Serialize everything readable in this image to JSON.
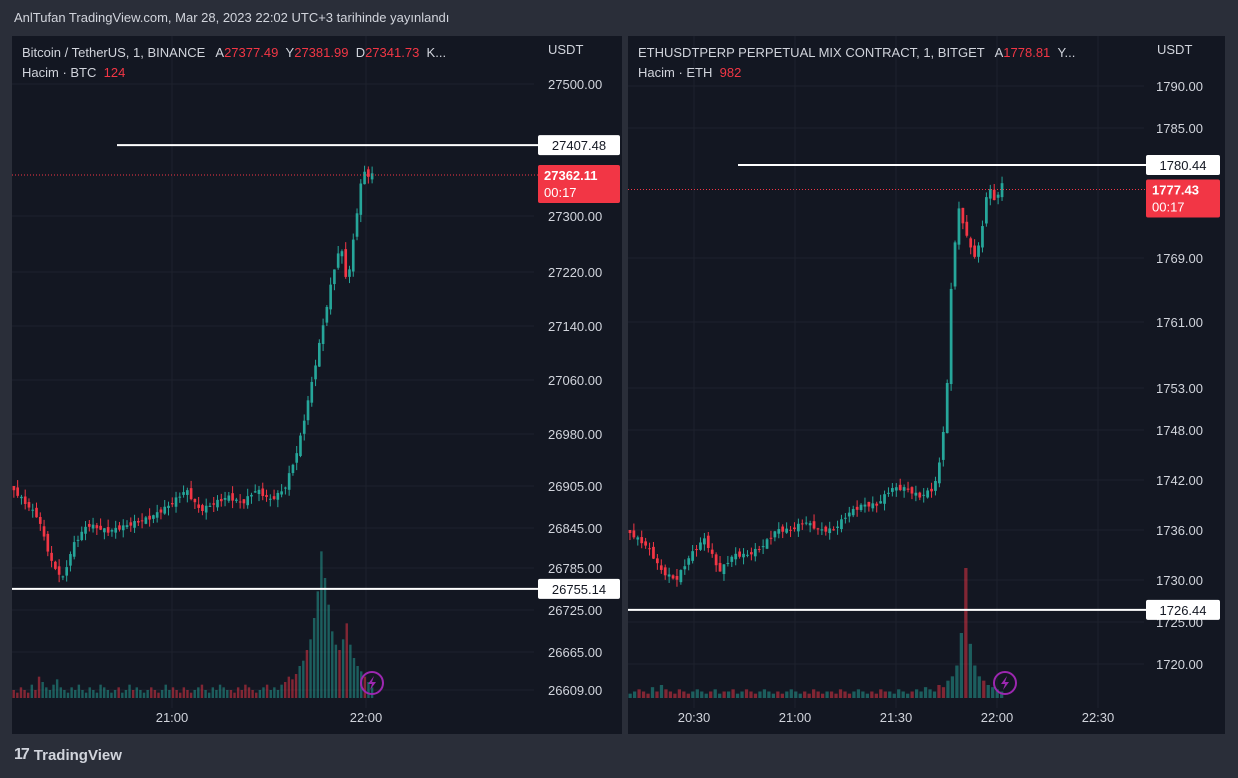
{
  "header": {
    "title": "AnlTufan TradingView.com, Mar 28, 2023 22:02 UTC+3 tarihinde yayınlandı"
  },
  "footer": {
    "brand": "TradingView",
    "logo_icon": "tradingview-logo-icon"
  },
  "colors": {
    "up": "#26a69a",
    "down": "#f23645",
    "background": "#131722",
    "grid": "#1e222d",
    "level_line": "#ffffff"
  },
  "chart_data": [
    {
      "type": "candlestick",
      "symbol_line": "Bitcoin / TetherUS, 1, BINANCE",
      "ohlc_labels": [
        {
          "key": "A",
          "value": "27377.49"
        },
        {
          "key": "Y",
          "value": "27381.99"
        },
        {
          "key": "D",
          "value": "27341.73"
        },
        {
          "key": "K...",
          "value": ""
        }
      ],
      "volume_label": "Hacim · BTC",
      "volume_value": "124",
      "unit": "USDT",
      "y_ticks": [
        "27500.00",
        "27300.00",
        "27220.00",
        "27140.00",
        "27060.00",
        "26980.00",
        "26905.00",
        "26845.00",
        "26785.00",
        "26725.00",
        "26665.00",
        "26609.00"
      ],
      "x_ticks": [
        "21:00",
        "22:00"
      ],
      "levels": [
        {
          "label": "27407.48",
          "value": 27407.48
        },
        {
          "label": "26755.14",
          "value": 26755.14
        }
      ],
      "last_price": {
        "label": "27362.11",
        "countdown": "00:17",
        "value": 27362.11
      },
      "x_range": [
        "20:20",
        "22:15"
      ],
      "price_path": [
        [
          0,
          26905
        ],
        [
          8,
          26860
        ],
        [
          12,
          26790
        ],
        [
          15,
          26770
        ],
        [
          18,
          26820
        ],
        [
          22,
          26850
        ],
        [
          28,
          26840
        ],
        [
          34,
          26850
        ],
        [
          40,
          26860
        ],
        [
          46,
          26880
        ],
        [
          50,
          26900
        ],
        [
          54,
          26870
        ],
        [
          58,
          26880
        ],
        [
          62,
          26890
        ],
        [
          66,
          26880
        ],
        [
          70,
          26900
        ],
        [
          74,
          26885
        ],
        [
          78,
          26900
        ],
        [
          82,
          26960
        ],
        [
          86,
          27060
        ],
        [
          89,
          27140
        ],
        [
          92,
          27220
        ],
        [
          94,
          27260
        ],
        [
          96,
          27200
        ],
        [
          98,
          27280
        ],
        [
          100,
          27355
        ],
        [
          101,
          27370
        ],
        [
          102,
          27360
        ],
        [
          103,
          27362
        ]
      ],
      "volumes": [
        3,
        2,
        4,
        3,
        2,
        5,
        3,
        8,
        6,
        4,
        3,
        5,
        7,
        4,
        3,
        2,
        4,
        3,
        5,
        3,
        2,
        4,
        3,
        2,
        5,
        4,
        3,
        2,
        3,
        4,
        2,
        3,
        5,
        3,
        4,
        3,
        2,
        3,
        4,
        3,
        2,
        3,
        5,
        3,
        4,
        3,
        2,
        4,
        3,
        2,
        3,
        4,
        5,
        3,
        2,
        4,
        3,
        5,
        4,
        3,
        3,
        2,
        4,
        3,
        5,
        4,
        3,
        2,
        3,
        4,
        5,
        3,
        4,
        3,
        5,
        6,
        8,
        7,
        9,
        12,
        14,
        18,
        22,
        30,
        40,
        55,
        45,
        35,
        25,
        20,
        18,
        22,
        28,
        20,
        15,
        12,
        10,
        8,
        6,
        4
      ]
    },
    {
      "type": "candlestick",
      "symbol_line": "ETHUSDTPERP PERPETUAL MIX CONTRACT, 1, BITGET",
      "ohlc_labels": [
        {
          "key": "A",
          "value": "1778.81"
        },
        {
          "key": "Y...",
          "value": ""
        }
      ],
      "volume_label": "Hacim · ETH",
      "volume_value": "982",
      "unit": "USDT",
      "y_ticks": [
        "1790.00",
        "1785.00",
        "1769.00",
        "1761.00",
        "1753.00",
        "1748.00",
        "1742.00",
        "1736.00",
        "1730.00",
        "1725.00",
        "1720.00"
      ],
      "x_ticks": [
        "20:30",
        "21:00",
        "21:30",
        "22:00",
        "22:30"
      ],
      "levels": [
        {
          "label": "1780.44",
          "value": 1780.44
        },
        {
          "label": "1726.44",
          "value": 1726.44
        }
      ],
      "last_price": {
        "label": "1777.43",
        "countdown": "00:17",
        "value": 1777.43
      },
      "x_range": [
        "20:15",
        "22:40"
      ],
      "price_path": [
        [
          0,
          1736
        ],
        [
          6,
          1734
        ],
        [
          10,
          1731
        ],
        [
          14,
          1730
        ],
        [
          18,
          1733
        ],
        [
          22,
          1735
        ],
        [
          26,
          1731
        ],
        [
          30,
          1733
        ],
        [
          34,
          1733
        ],
        [
          38,
          1734
        ],
        [
          42,
          1736
        ],
        [
          46,
          1736
        ],
        [
          50,
          1737
        ],
        [
          54,
          1736
        ],
        [
          58,
          1736
        ],
        [
          62,
          1738
        ],
        [
          66,
          1739
        ],
        [
          70,
          1739
        ],
        [
          74,
          1741
        ],
        [
          78,
          1741
        ],
        [
          82,
          1740
        ],
        [
          86,
          1741
        ],
        [
          88,
          1745
        ],
        [
          90,
          1755
        ],
        [
          91,
          1768
        ],
        [
          93,
          1775
        ],
        [
          95,
          1772
        ],
        [
          97,
          1769
        ],
        [
          99,
          1771
        ],
        [
          101,
          1778
        ],
        [
          103,
          1776
        ],
        [
          105,
          1778
        ]
      ],
      "volumes": [
        2,
        3,
        4,
        3,
        2,
        5,
        3,
        6,
        4,
        3,
        2,
        4,
        3,
        2,
        3,
        4,
        3,
        2,
        3,
        4,
        2,
        3,
        3,
        4,
        2,
        3,
        4,
        3,
        2,
        3,
        4,
        3,
        2,
        3,
        2,
        3,
        4,
        3,
        2,
        3,
        2,
        4,
        3,
        2,
        3,
        3,
        2,
        4,
        3,
        2,
        3,
        4,
        3,
        2,
        3,
        2,
        4,
        3,
        3,
        2,
        4,
        3,
        2,
        3,
        4,
        3,
        5,
        4,
        3,
        6,
        5,
        8,
        10,
        15,
        30,
        60,
        25,
        15,
        10,
        8,
        6,
        5,
        4,
        3
      ]
    }
  ]
}
